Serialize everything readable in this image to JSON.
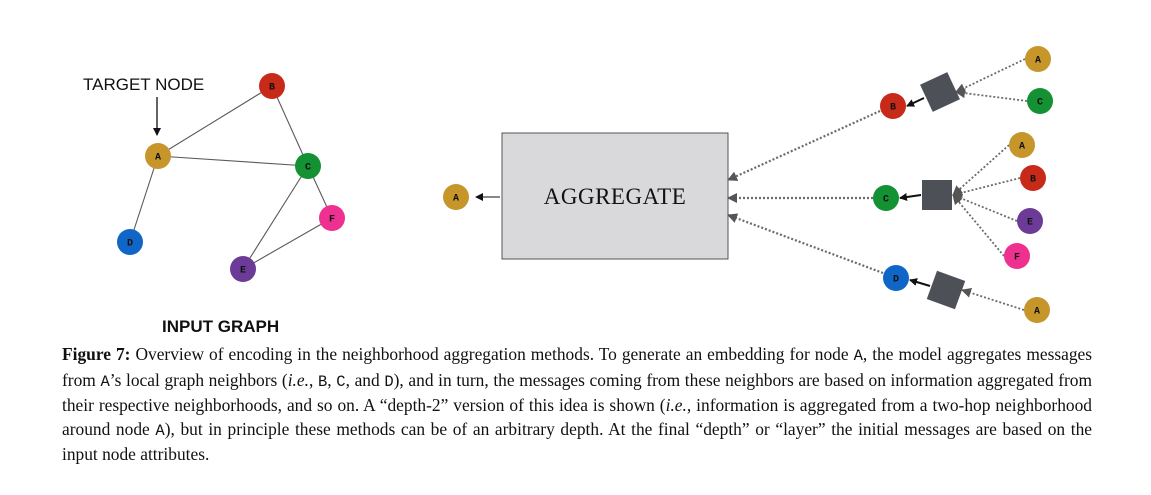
{
  "colors": {
    "A": "#c6962b",
    "B": "#c82a1a",
    "C": "#149133",
    "D": "#1066c7",
    "E": "#6c3b97",
    "F": "#ee3090",
    "edge": "#5a5a5a",
    "aggregate_fill": "#d9d9db",
    "agg_square": "#4d5157",
    "dotted": "#6b6b6b"
  },
  "input_graph": {
    "target_label": "TARGET NODE",
    "title": "INPUT GRAPH",
    "nodes": [
      {
        "id": "A",
        "label": "A"
      },
      {
        "id": "B",
        "label": "B"
      },
      {
        "id": "C",
        "label": "C"
      },
      {
        "id": "D",
        "label": "D"
      },
      {
        "id": "E",
        "label": "E"
      },
      {
        "id": "F",
        "label": "F"
      }
    ],
    "edges": [
      [
        "A",
        "B"
      ],
      [
        "A",
        "C"
      ],
      [
        "B",
        "C"
      ],
      [
        "A",
        "D"
      ],
      [
        "C",
        "E"
      ],
      [
        "C",
        "F"
      ],
      [
        "E",
        "F"
      ]
    ]
  },
  "computation_graph": {
    "aggregate_label": "AGGREGATE",
    "output_node": "A",
    "first_hop": [
      {
        "node": "B",
        "neighbors": [
          "A",
          "C"
        ]
      },
      {
        "node": "C",
        "neighbors": [
          "A",
          "B",
          "E",
          "F"
        ]
      },
      {
        "node": "D",
        "neighbors": [
          "A"
        ]
      }
    ]
  },
  "caption": {
    "figure_label": "Figure 7:",
    "t1": " Overview of encoding in the neighborhood aggregation methods. To generate an embedding for node ",
    "n1": "A",
    "t2": ", the model aggregates messages from ",
    "n2": "A",
    "t3": "’s local graph neighbors (",
    "ie1": "i.e.",
    "t4": ", ",
    "n3": "B",
    "t5": ", ",
    "n4": "C",
    "t6": ", and ",
    "n5": "D",
    "t7": "), and in turn, the messages coming from these neighbors are based on information aggregated from their respective neighborhoods, and so on. A “depth-2” version of this idea is shown (",
    "ie2": "i.e.",
    "t8": ", information is aggregated from a two-hop neighborhood around node ",
    "n6": "A",
    "t9": "), but in principle these methods can be of an arbitrary depth. At the final “depth” or “layer” the initial messages are based on the input node attributes."
  }
}
